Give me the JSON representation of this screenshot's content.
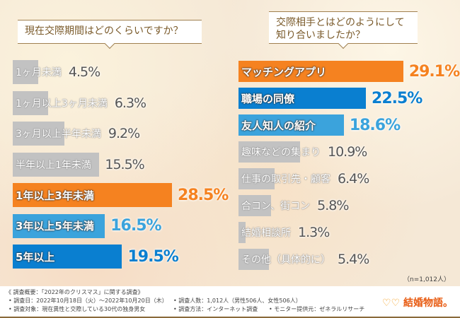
{
  "chart_data": [
    {
      "type": "bar",
      "title": "現在交際期間はどのくらいですか？",
      "categories": [
        "1ヶ月未満",
        "1ヶ月以上3ヶ月未満",
        "3ヶ月以上半年未満",
        "半年以上1年未満",
        "1年以上3年未満",
        "3年以上5年未満",
        "5年以上"
      ],
      "values": [
        4.5,
        6.3,
        9.2,
        15.5,
        28.5,
        16.5,
        19.5
      ],
      "labels": [
        "4.5%",
        "6.3%",
        "9.2%",
        "15.5%",
        "28.5%",
        "16.5%",
        "19.5%"
      ],
      "colors": [
        "#c2c2c2",
        "#c2c2c2",
        "#c2c2c2",
        "#c2c2c2",
        "#f58220",
        "#3ba3dc",
        "#0a7fd0"
      ],
      "highlight": [
        false,
        false,
        false,
        false,
        true,
        true,
        true
      ]
    },
    {
      "type": "bar",
      "title": "交際相手とはどのようにして知り合いましたか？",
      "categories": [
        "マッチングアプリ",
        "職場の同僚",
        "友人知人の紹介",
        "趣味などの集まり",
        "仕事の取引先・顧客",
        "合コン、街コン",
        "結婚相談所",
        "その他（具体的に）"
      ],
      "values": [
        29.1,
        22.5,
        18.6,
        10.9,
        6.4,
        5.8,
        1.3,
        5.4
      ],
      "labels": [
        "29.1%",
        "22.5%",
        "18.6%",
        "10.9%",
        "6.4%",
        "5.8%",
        "1.3%",
        "5.4%"
      ],
      "colors": [
        "#f58220",
        "#0a7fd0",
        "#3ba3dc",
        "#c2c2c2",
        "#c2c2c2",
        "#c2c2c2",
        "#c2c2c2",
        "#c2c2c2"
      ],
      "highlight": [
        true,
        true,
        true,
        false,
        false,
        false,
        false,
        false
      ]
    }
  ],
  "left_title": "現在交際期間はどのくらいですか？",
  "right_title_1": "交際相手とはどのようにして",
  "right_title_2": "知り合いましたか？",
  "sample": "（n=1,012人）",
  "footer": {
    "l1": "《 調査概要：「2022年のクリスマス」に関する調査》",
    "l2": "• 調査日：2022年10月18日（火）～2022年10月20日（木）",
    "l3": "• 調査人数：1,012人（男性506人、女性506人）",
    "l4": "• 調査対象：現在異性と交際している30代の独身男女",
    "l5": "• 調査方法：インターネット調査",
    "l6": "• モニター提供元：ゼネラルリサーチ"
  },
  "logo": "結婚物語。"
}
